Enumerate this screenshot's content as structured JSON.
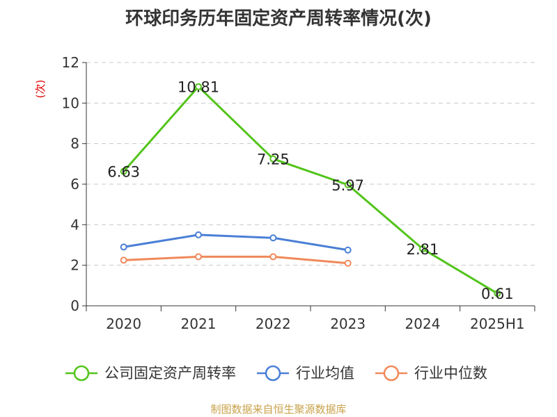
{
  "title": "环球印务历年固定资产周转率情况(次)",
  "footer": "制图数据来自恒生聚源数据库",
  "chart_data": {
    "type": "line",
    "title": "环球印务历年固定资产周转率情况(次)",
    "ylabel": "(次)",
    "xlabel": "",
    "categories": [
      "2020",
      "2021",
      "2022",
      "2023",
      "2024",
      "2025H1"
    ],
    "ylim": [
      0,
      12
    ],
    "yticks": [
      0,
      2,
      4,
      6,
      8,
      10,
      12
    ],
    "grid": true,
    "legend_position": "bottom",
    "series": [
      {
        "name": "公司固定资产周转率",
        "color": "#52c41a",
        "values": [
          6.63,
          10.81,
          7.25,
          5.97,
          2.81,
          0.61
        ],
        "labels": [
          "6.63",
          "10.81",
          "7.25",
          "5.97",
          "2.81",
          "0.61"
        ]
      },
      {
        "name": "行业均值",
        "color": "#4a7fd6",
        "values": [
          2.9,
          3.5,
          3.35,
          2.75,
          null,
          null
        ]
      },
      {
        "name": "行业中位数",
        "color": "#f0895a",
        "values": [
          2.25,
          2.42,
          2.42,
          2.1,
          null,
          null
        ]
      }
    ]
  }
}
